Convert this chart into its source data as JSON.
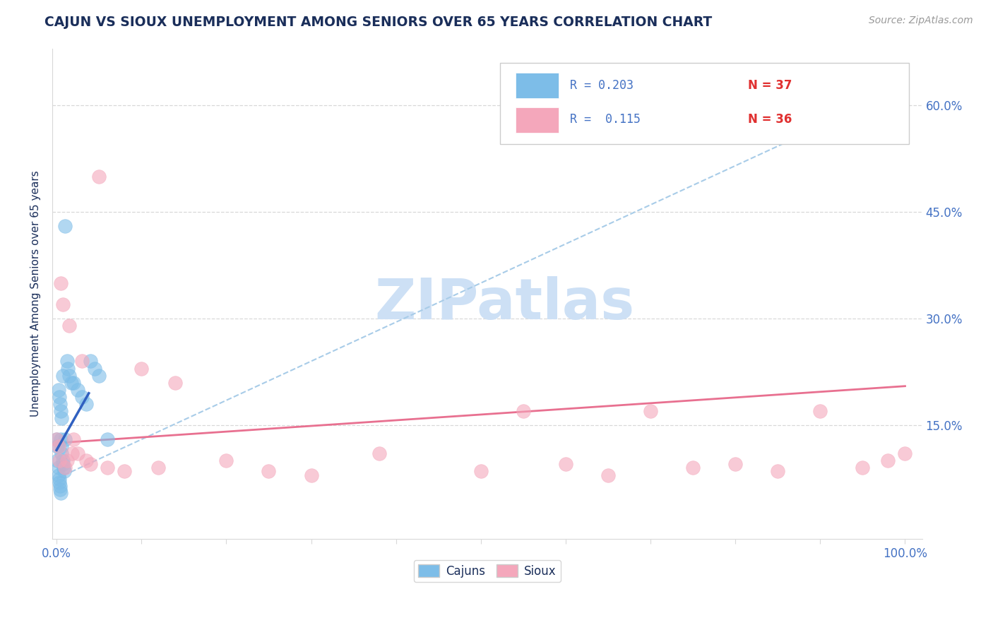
{
  "title": "CAJUN VS SIOUX UNEMPLOYMENT AMONG SENIORS OVER 65 YEARS CORRELATION CHART",
  "source_text": "Source: ZipAtlas.com",
  "ylabel": "Unemployment Among Seniors over 65 years",
  "xlim": [
    -0.005,
    1.02
  ],
  "ylim": [
    -0.01,
    0.68
  ],
  "xtick_positions": [
    0.0,
    0.1,
    0.2,
    0.3,
    0.4,
    0.5,
    0.6,
    0.7,
    0.8,
    0.9,
    1.0
  ],
  "xticklabels": [
    "0.0%",
    "",
    "",
    "",
    "",
    "",
    "",
    "",
    "",
    "",
    "100.0%"
  ],
  "ytick_positions": [
    0.15,
    0.3,
    0.45,
    0.6
  ],
  "yticklabels": [
    "15.0%",
    "30.0%",
    "45.0%",
    "60.0%"
  ],
  "cajun_color": "#7dbde8",
  "sioux_color": "#f4a7bb",
  "cajun_label": "Cajuns",
  "sioux_label": "Sioux",
  "title_color": "#1a2e5a",
  "axis_label_color": "#1a2e5a",
  "tick_color": "#4472c4",
  "legend_text_color": "#1a1a1a",
  "legend_value_color": "#4472c4",
  "legend_n_color": "#e05050",
  "watermark": "ZIPatlas",
  "watermark_color": "#cde0f5",
  "grid_color": "#d8d8d8",
  "cajun_trendline_dashed_color": "#a8cce8",
  "cajun_trendline_solid_color": "#3060c0",
  "sioux_trendline_color": "#e87090",
  "cajun_x": [
    0.0,
    0.001,
    0.001,
    0.002,
    0.002,
    0.003,
    0.003,
    0.004,
    0.004,
    0.005,
    0.005,
    0.006,
    0.006,
    0.007,
    0.007,
    0.008,
    0.009,
    0.01,
    0.01,
    0.012,
    0.013,
    0.015,
    0.017,
    0.002,
    0.003,
    0.004,
    0.005,
    0.006,
    0.007,
    0.02,
    0.025,
    0.03,
    0.035,
    0.04,
    0.045,
    0.05,
    0.06
  ],
  "cajun_y": [
    0.13,
    0.12,
    0.1,
    0.09,
    0.08,
    0.075,
    0.07,
    0.065,
    0.06,
    0.055,
    0.13,
    0.12,
    0.11,
    0.1,
    0.095,
    0.09,
    0.085,
    0.43,
    0.13,
    0.24,
    0.23,
    0.22,
    0.21,
    0.2,
    0.19,
    0.18,
    0.17,
    0.16,
    0.22,
    0.21,
    0.2,
    0.19,
    0.18,
    0.24,
    0.23,
    0.22,
    0.13
  ],
  "sioux_x": [
    0.0,
    0.002,
    0.003,
    0.005,
    0.007,
    0.01,
    0.012,
    0.015,
    0.018,
    0.02,
    0.025,
    0.03,
    0.035,
    0.04,
    0.05,
    0.06,
    0.08,
    0.1,
    0.12,
    0.14,
    0.2,
    0.25,
    0.3,
    0.38,
    0.5,
    0.55,
    0.6,
    0.65,
    0.7,
    0.75,
    0.8,
    0.85,
    0.9,
    0.95,
    0.98,
    1.0
  ],
  "sioux_y": [
    0.13,
    0.12,
    0.1,
    0.35,
    0.32,
    0.09,
    0.1,
    0.29,
    0.11,
    0.13,
    0.11,
    0.24,
    0.1,
    0.095,
    0.5,
    0.09,
    0.085,
    0.23,
    0.09,
    0.21,
    0.1,
    0.085,
    0.08,
    0.11,
    0.085,
    0.17,
    0.095,
    0.08,
    0.17,
    0.09,
    0.095,
    0.085,
    0.17,
    0.09,
    0.1,
    0.11
  ],
  "cajun_solid_trend_x": [
    0.0,
    0.038
  ],
  "cajun_solid_trend_y": [
    0.115,
    0.195
  ],
  "cajun_dashed_trend_x": [
    0.0,
    1.0
  ],
  "cajun_dashed_trend_y": [
    0.075,
    0.625
  ],
  "sioux_trend_x": [
    0.0,
    1.0
  ],
  "sioux_trend_y": [
    0.125,
    0.205
  ]
}
